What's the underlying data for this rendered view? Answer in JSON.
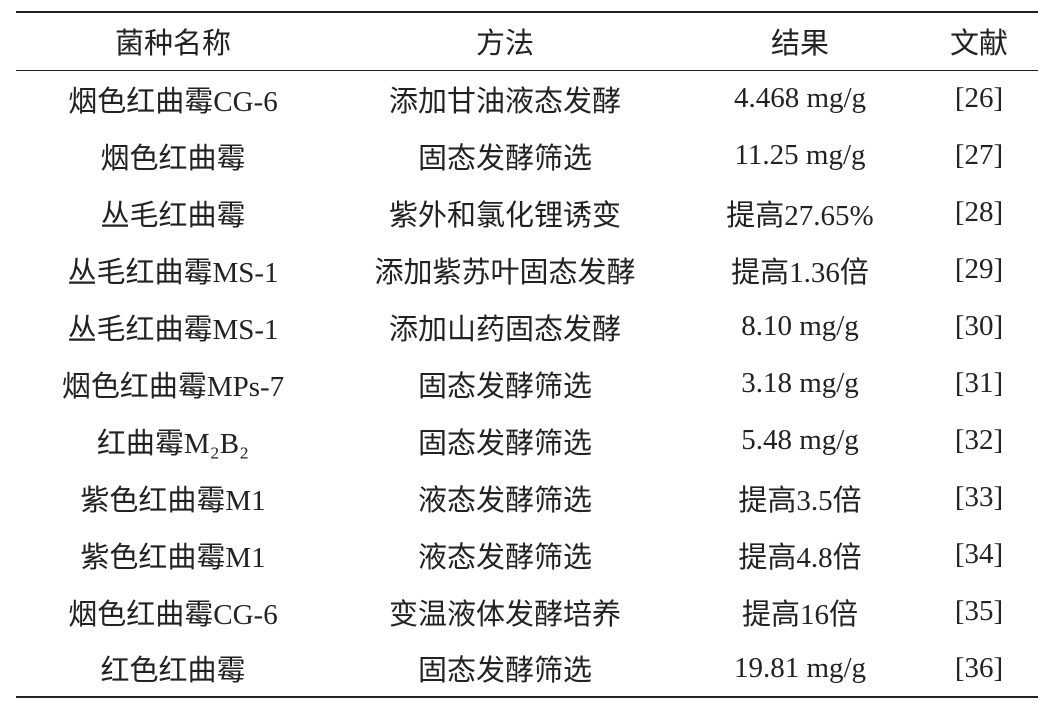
{
  "table": {
    "header": [
      "菌种名称",
      "方法",
      "结果",
      "文献"
    ],
    "rows": [
      [
        "烟色红曲霉CG-6",
        "添加甘油液态发酵",
        "4.468 mg/g",
        "[26]"
      ],
      [
        "烟色红曲霉",
        "固态发酵筛选",
        "11.25 mg/g",
        "[27]"
      ],
      [
        "丛毛红曲霉",
        "紫外和氯化锂诱变",
        "提高27.65%",
        "[28]"
      ],
      [
        "丛毛红曲霉MS-1",
        "添加紫苏叶固态发酵",
        "提高1.36倍",
        "[29]"
      ],
      [
        "丛毛红曲霉MS-1",
        "添加山药固态发酵",
        "8.10 mg/g",
        "[30]"
      ],
      [
        "烟色红曲霉MPs-7",
        "固态发酵筛选",
        "3.18 mg/g",
        "[31]"
      ],
      [
        "红曲霉M₂B₂",
        "固态发酵筛选",
        "5.48 mg/g",
        "[32]"
      ],
      [
        "紫色红曲霉M1",
        "液态发酵筛选",
        "提高3.5倍",
        "[33]"
      ],
      [
        "紫色红曲霉M1",
        "液态发酵筛选",
        "提高4.8倍",
        "[34]"
      ],
      [
        "烟色红曲霉CG-6",
        "变温液体发酵培养",
        "提高16倍",
        "[35]"
      ],
      [
        "红色红曲霉",
        "固态发酵筛选",
        "19.81 mg/g",
        "[36]"
      ]
    ]
  }
}
